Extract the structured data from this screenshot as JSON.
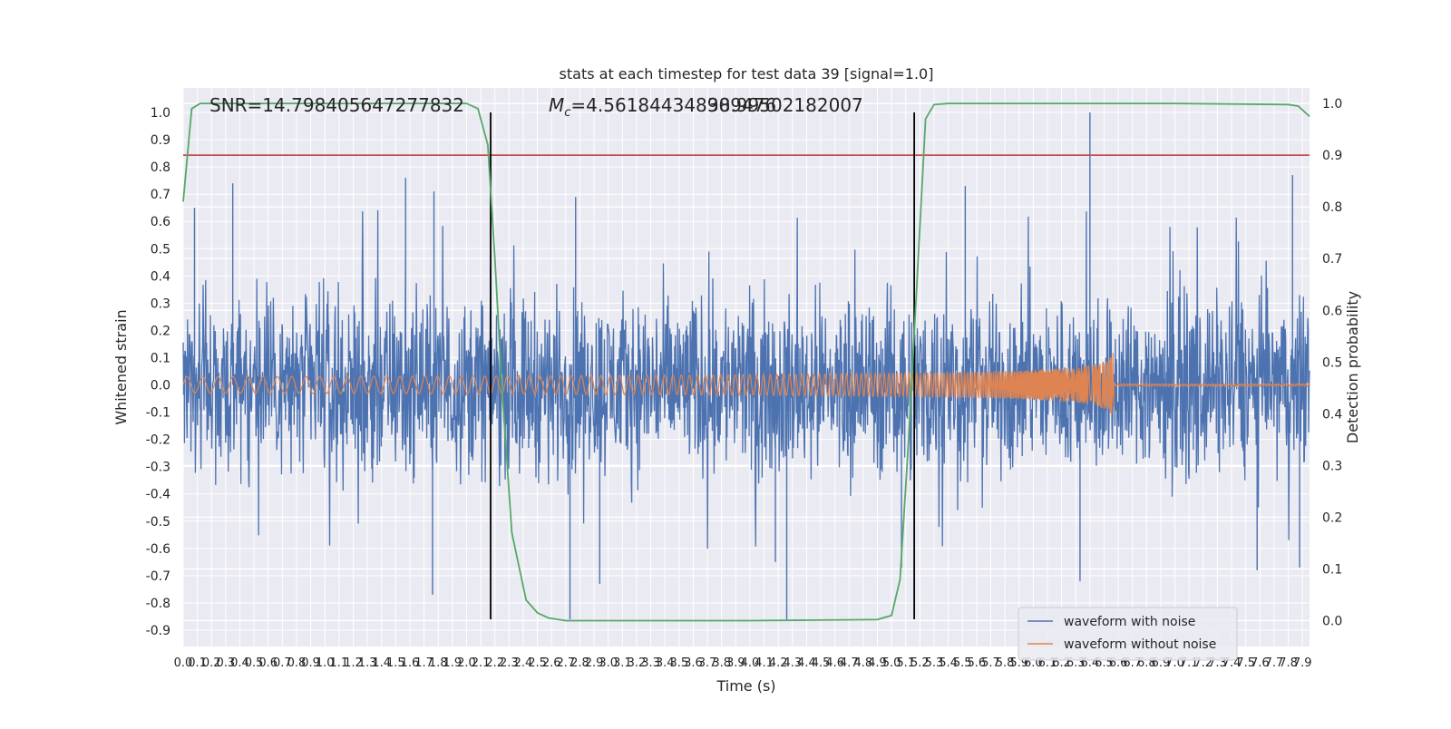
{
  "chart_data": {
    "type": "line",
    "title": "stats at each timestep for test data 39 [signal=1.0]",
    "xlabel": "Time (s)",
    "ylabel": "Whitened strain",
    "ylabel_right": "Detection probability",
    "xlim": [
      0.0,
      7.95
    ],
    "ylim": [
      -0.96,
      1.09
    ],
    "ylim_right": [
      -0.05,
      1.03
    ],
    "grid": true,
    "x_tick_step": 0.1,
    "y_ticks": [
      1.0,
      0.9,
      0.8,
      0.7,
      0.6,
      0.5,
      0.4,
      0.3,
      0.2,
      0.1,
      0.0,
      -0.1,
      -0.2,
      -0.3,
      -0.4,
      -0.5,
      -0.6,
      -0.7,
      -0.8,
      -0.9
    ],
    "y_ticks_right": [
      1.0,
      0.9,
      0.8,
      0.7,
      0.6,
      0.5,
      0.4,
      0.3,
      0.2,
      0.1,
      0.0
    ],
    "annotations": {
      "snr": "SNR=14.798405647277832",
      "mc_symbol": "M",
      "mc_subscript": "c",
      "mc_value": "=4.561844348909476",
      "mc_overlap": "38.99502182007"
    },
    "legend": {
      "position": "lower-right",
      "entries": [
        "waveform with noise",
        "waveform without noise"
      ]
    },
    "colors": {
      "noise": "#4c72b0",
      "clean": "#dd8452",
      "probability": "#55a868",
      "threshold": "#c44e52",
      "marker": "#000000"
    },
    "threshold_right": 0.9,
    "vertical_markers": [
      2.17,
      5.16
    ],
    "marker_range": [
      -0.86,
      1.0
    ],
    "series": [
      {
        "name": "waveform with noise",
        "kind": "noisy",
        "typical_min": -0.45,
        "typical_max": 0.45,
        "spikes": [
          {
            "x": 0.08,
            "y": 0.65
          },
          {
            "x": 0.35,
            "y": 0.74
          },
          {
            "x": 1.57,
            "y": 0.76
          },
          {
            "x": 1.77,
            "y": 0.71
          },
          {
            "x": 2.77,
            "y": 0.69
          },
          {
            "x": 5.52,
            "y": 0.73
          },
          {
            "x": 6.4,
            "y": 1.0
          },
          {
            "x": 7.83,
            "y": 0.77
          },
          {
            "x": 1.76,
            "y": -0.77
          },
          {
            "x": 2.73,
            "y": -0.86
          },
          {
            "x": 2.94,
            "y": -0.73
          },
          {
            "x": 4.26,
            "y": -0.86
          },
          {
            "x": 4.18,
            "y": -0.65
          },
          {
            "x": 5.07,
            "y": -0.67
          },
          {
            "x": 6.33,
            "y": -0.72
          },
          {
            "x": 7.58,
            "y": -0.68
          },
          {
            "x": 7.88,
            "y": -0.67
          }
        ]
      },
      {
        "name": "waveform without noise",
        "kind": "chirp",
        "start_amplitude": 0.03,
        "peak_amplitude": 0.26,
        "merger_time": 6.57,
        "ringdown_amplitude": 0.005
      },
      {
        "name": "detection probability",
        "axis": "right",
        "x": [
          0.0,
          0.06,
          0.12,
          0.3,
          1.0,
          1.5,
          2.0,
          2.08,
          2.15,
          2.2,
          2.25,
          2.32,
          2.42,
          2.5,
          2.58,
          2.7,
          3.0,
          4.0,
          4.9,
          5.0,
          5.06,
          5.12,
          5.18,
          5.24,
          5.3,
          5.4,
          6.0,
          7.0,
          7.8,
          7.87,
          7.95
        ],
        "y": [
          0.81,
          0.99,
          1.0,
          1.0,
          1.0,
          1.0,
          1.0,
          0.99,
          0.92,
          0.7,
          0.45,
          0.17,
          0.04,
          0.015,
          0.005,
          0.0,
          0.0,
          0.0,
          0.002,
          0.01,
          0.08,
          0.35,
          0.66,
          0.97,
          0.998,
          1.0,
          1.0,
          1.0,
          0.998,
          0.995,
          0.975
        ]
      }
    ]
  }
}
